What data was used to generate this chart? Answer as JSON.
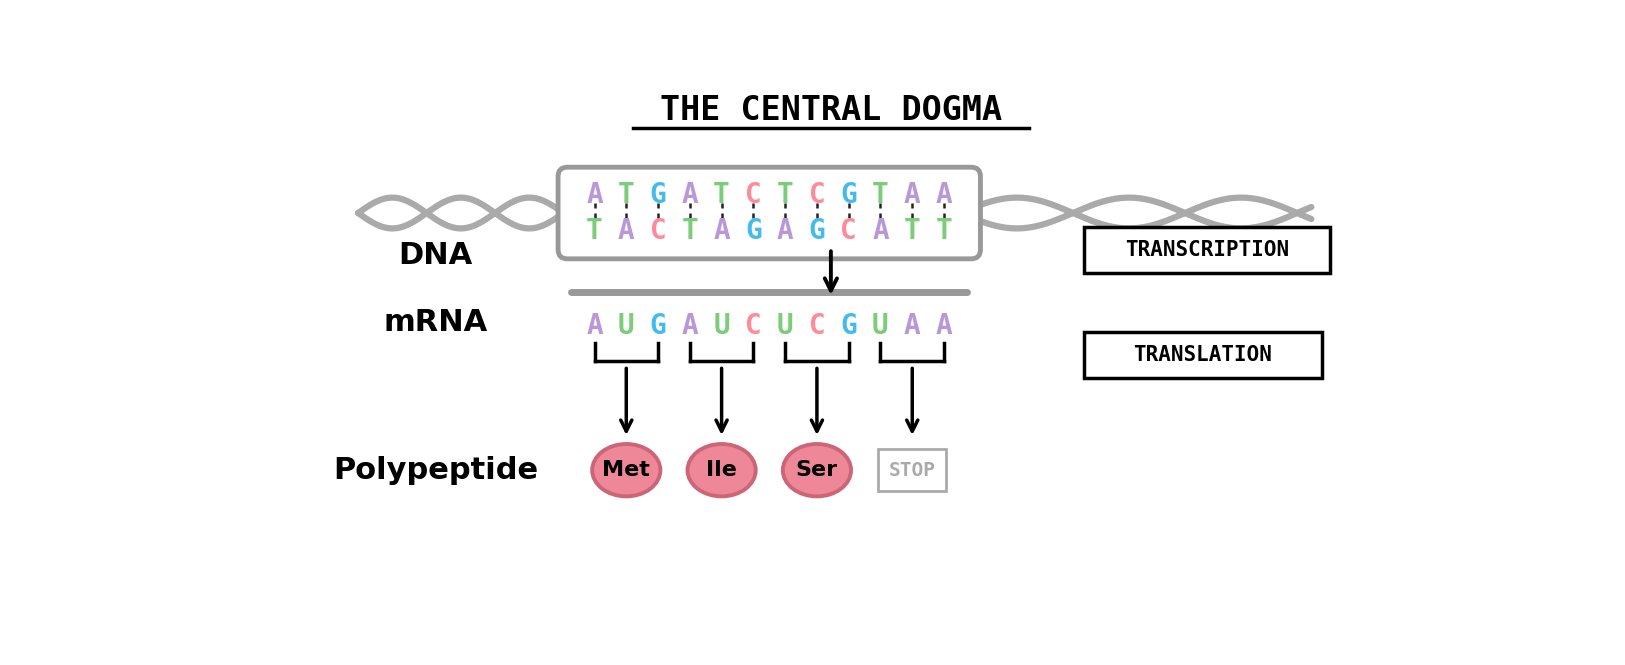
{
  "title": "THE CENTRAL DOGMA",
  "background_color": "#ffffff",
  "dna_strand1": [
    "A",
    "T",
    "G",
    "A",
    "T",
    "C",
    "T",
    "C",
    "G",
    "T",
    "A",
    "A"
  ],
  "dna_strand2": [
    "T",
    "A",
    "C",
    "T",
    "A",
    "G",
    "A",
    "G",
    "C",
    "A",
    "T",
    "T"
  ],
  "mrna_seq": [
    "A",
    "U",
    "G",
    "A",
    "U",
    "C",
    "U",
    "C",
    "G",
    "U",
    "A",
    "A"
  ],
  "letter_colors": {
    "A": "#b898d8",
    "T": "#7ccc7c",
    "G": "#44bbee",
    "C": "#ff8899",
    "U": "#7ccc7c"
  },
  "dna_label": "DNA",
  "mrna_label": "mRNA",
  "polypeptide_label": "Polypeptide",
  "transcription_label": "TRANSCRIPTION",
  "translation_label": "TRANSLATION",
  "amino_acids": [
    "Met",
    "Ile",
    "Ser"
  ],
  "stop_label": "STOP",
  "aa_color": "#ee8899",
  "aa_edge_color": "#cc6677",
  "stop_border_color": "#aaaaaa",
  "stop_text_color": "#aaaaaa",
  "arrow_color": "#111111",
  "dna_box_color": "#999999",
  "mrna_line_color": "#999999",
  "helix_color": "#aaaaaa",
  "bond_color": "#222222",
  "label_fontsize": 22,
  "seq_fontsize": 20,
  "aa_fontsize": 16,
  "title_fontsize": 24
}
